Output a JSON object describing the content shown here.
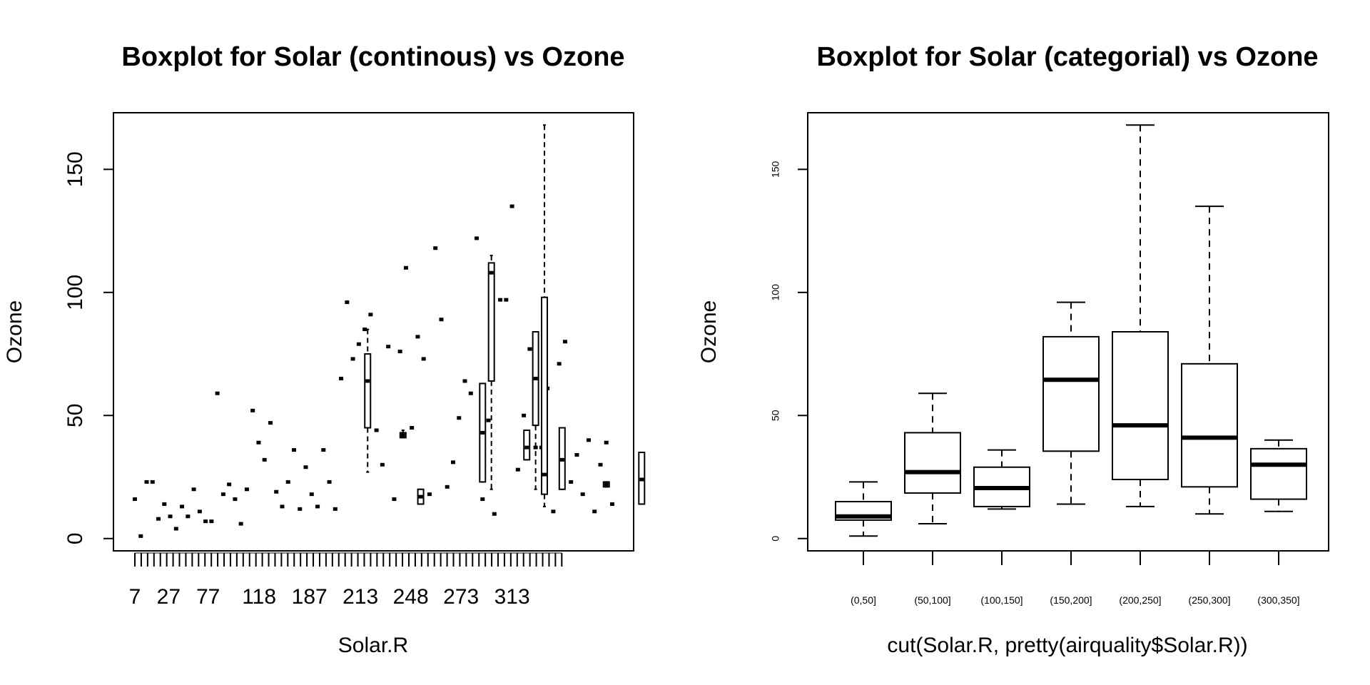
{
  "chart_data": [
    {
      "type": "boxplot",
      "title": "Boxplot for Solar (continous) vs Ozone",
      "xlabel": "Solar.R",
      "ylabel": "Ozone",
      "ylim": [
        -5,
        173
      ],
      "yticks": [
        0,
        50,
        100,
        150
      ],
      "xtick_labels": [
        "7",
        "27",
        "77",
        "118",
        "187",
        "213",
        "248",
        "273",
        "313"
      ],
      "group_count": 68,
      "boxes": [
        {
          "position": 27,
          "min": 27,
          "q1": 45,
          "median": 64,
          "q3": 75,
          "max": 85
        },
        {
          "position": 31,
          "min": 41,
          "q1": 41,
          "median": 42,
          "q3": 43,
          "max": 44
        },
        {
          "position": 33,
          "min": 14,
          "q1": 14,
          "median": 17,
          "q3": 20,
          "max": 20
        },
        {
          "position": 40,
          "min": 23,
          "q1": 23,
          "median": 43,
          "q3": 63,
          "max": 63
        },
        {
          "position": 41,
          "min": 20,
          "q1": 64,
          "median": 108,
          "q3": 112,
          "max": 115
        },
        {
          "position": 45,
          "min": 32,
          "q1": 32,
          "median": 37,
          "q3": 44,
          "max": 44
        },
        {
          "position": 46,
          "min": 20,
          "q1": 46,
          "median": 65,
          "q3": 84,
          "max": 84
        },
        {
          "position": 47,
          "min": 13,
          "q1": 18,
          "median": 26,
          "q3": 98,
          "max": 168
        },
        {
          "position": 49,
          "min": 20,
          "q1": 20,
          "median": 32,
          "q3": 45,
          "max": 45
        },
        {
          "position": 54,
          "min": 21,
          "q1": 21,
          "median": 22,
          "q3": 23,
          "max": 23
        },
        {
          "position": 58,
          "min": 14,
          "q1": 14,
          "median": 24,
          "q3": 35,
          "max": 35
        }
      ],
      "points": [
        [
          1,
          16
        ],
        [
          2,
          1
        ],
        [
          3,
          23
        ],
        [
          4,
          23
        ],
        [
          5,
          8
        ],
        [
          6,
          14
        ],
        [
          7,
          9
        ],
        [
          8,
          4
        ],
        [
          9,
          13
        ],
        [
          10,
          9
        ],
        [
          11,
          20
        ],
        [
          12,
          11
        ],
        [
          13,
          7
        ],
        [
          14,
          7
        ],
        [
          15,
          59
        ],
        [
          16,
          18
        ],
        [
          17,
          22
        ],
        [
          18,
          16
        ],
        [
          19,
          6
        ],
        [
          20,
          20
        ],
        [
          21,
          52
        ],
        [
          22,
          39
        ],
        [
          23,
          32
        ],
        [
          24,
          47
        ],
        [
          25,
          19
        ],
        [
          26,
          13
        ],
        [
          27,
          23
        ],
        [
          28,
          36
        ],
        [
          29,
          12
        ],
        [
          30,
          29
        ],
        [
          31,
          18
        ],
        [
          32,
          13
        ],
        [
          33,
          36
        ],
        [
          34,
          23
        ],
        [
          35,
          12
        ],
        [
          36,
          65
        ],
        [
          37,
          96
        ],
        [
          38,
          73
        ],
        [
          39,
          79
        ],
        [
          40,
          85
        ],
        [
          41,
          91
        ],
        [
          42,
          44
        ],
        [
          43,
          30
        ],
        [
          44,
          78
        ],
        [
          45,
          16
        ],
        [
          46,
          76
        ],
        [
          47,
          110
        ],
        [
          48,
          45
        ],
        [
          49,
          82
        ],
        [
          50,
          73
        ],
        [
          51,
          18
        ],
        [
          52,
          118
        ],
        [
          53,
          89
        ],
        [
          54,
          21
        ],
        [
          55,
          31
        ],
        [
          56,
          49
        ],
        [
          57,
          64
        ],
        [
          58,
          59
        ],
        [
          59,
          122
        ],
        [
          60,
          16
        ],
        [
          61,
          48
        ],
        [
          62,
          10
        ],
        [
          63,
          97
        ],
        [
          64,
          97
        ],
        [
          65,
          135
        ],
        [
          66,
          28
        ],
        [
          67,
          50
        ],
        [
          68,
          77
        ],
        [
          69,
          37
        ],
        [
          70,
          37
        ],
        [
          71,
          61
        ],
        [
          72,
          11
        ],
        [
          73,
          71
        ],
        [
          74,
          80
        ],
        [
          75,
          23
        ],
        [
          76,
          34
        ],
        [
          77,
          18
        ],
        [
          78,
          40
        ],
        [
          79,
          11
        ],
        [
          80,
          30
        ],
        [
          81,
          39
        ],
        [
          82,
          14
        ]
      ]
    },
    {
      "type": "boxplot",
      "title": "Boxplot for Solar (categorial) vs Ozone",
      "xlabel": "cut(Solar.R, pretty(airquality$Solar.R))",
      "ylabel": "Ozone",
      "ylim": [
        -5,
        173
      ],
      "yticks": [
        0,
        50,
        100,
        150
      ],
      "categories": [
        "(0,50]",
        "(50,100]",
        "(100,150]",
        "(150,200]",
        "(200,250]",
        "(250,300]",
        "(300,350]"
      ],
      "boxes": [
        {
          "category": "(0,50]",
          "min": 1,
          "q1": 7.5,
          "median": 9,
          "q3": 15,
          "max": 23
        },
        {
          "category": "(50,100]",
          "min": 6,
          "q1": 18.5,
          "median": 27,
          "q3": 43,
          "max": 59
        },
        {
          "category": "(100,150]",
          "min": 12,
          "q1": 13,
          "median": 20.5,
          "q3": 29,
          "max": 36
        },
        {
          "category": "(150,200]",
          "min": 14,
          "q1": 35.5,
          "median": 64.5,
          "q3": 82,
          "max": 96
        },
        {
          "category": "(200,250]",
          "min": 13,
          "q1": 24,
          "median": 46,
          "q3": 84,
          "max": 168
        },
        {
          "category": "(250,300]",
          "min": 10,
          "q1": 21,
          "median": 41,
          "q3": 71,
          "max": 135
        },
        {
          "category": "(300,350]",
          "min": 11,
          "q1": 16,
          "median": 30,
          "q3": 36.5,
          "max": 40
        }
      ]
    }
  ]
}
